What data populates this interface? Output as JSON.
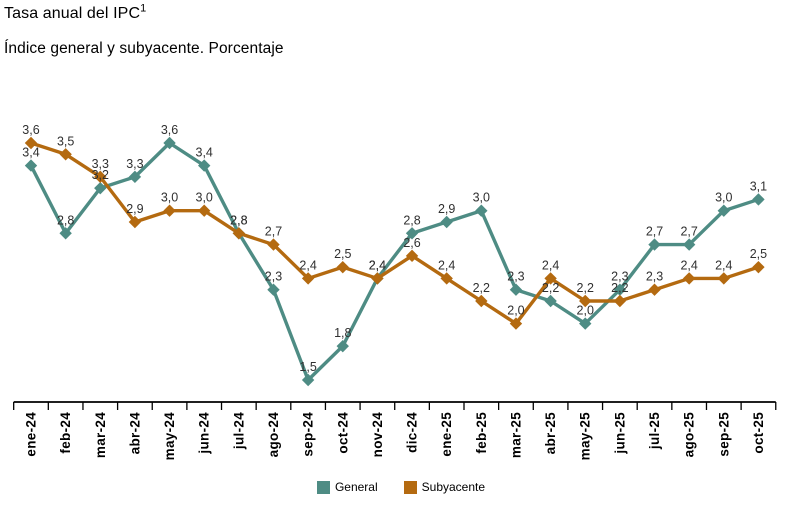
{
  "chart_data": {
    "type": "line",
    "title": "Tasa anual del IPC",
    "title_superscript": "1",
    "subtitle": "Índice general y subyacente. Porcentaje",
    "categories": [
      "ene-24",
      "feb-24",
      "mar-24",
      "abr-24",
      "may-24",
      "jun-24",
      "jul-24",
      "ago-24",
      "sep-24",
      "oct-24",
      "nov-24",
      "dic-24",
      "ene-25",
      "feb-25",
      "mar-25",
      "abr-25",
      "may-25",
      "jun-25",
      "jul-25",
      "ago-25",
      "sep-25",
      "oct-25"
    ],
    "series": [
      {
        "name": "General",
        "color": "#4E8C84",
        "values": [
          3.4,
          2.8,
          3.2,
          3.3,
          3.6,
          3.4,
          2.8,
          2.3,
          1.5,
          1.8,
          2.4,
          2.8,
          2.9,
          3.0,
          2.3,
          2.2,
          2.0,
          2.3,
          2.7,
          2.7,
          3.0,
          3.1
        ]
      },
      {
        "name": "Subyacente",
        "color": "#B46A10",
        "values": [
          3.6,
          3.5,
          3.3,
          2.9,
          3.0,
          3.0,
          2.8,
          2.7,
          2.4,
          2.5,
          2.4,
          2.6,
          2.4,
          2.2,
          2.0,
          2.4,
          2.2,
          2.2,
          2.3,
          2.4,
          2.4,
          2.5
        ]
      }
    ],
    "xlabel": "",
    "ylabel": "",
    "ylim": [
      1.3,
      3.8
    ],
    "grid": false,
    "y_axis_visible": false,
    "legend_position": "bottom",
    "marker": "diamond",
    "value_labels": true,
    "decimal_separator": ",",
    "axis_color": "#000000"
  }
}
